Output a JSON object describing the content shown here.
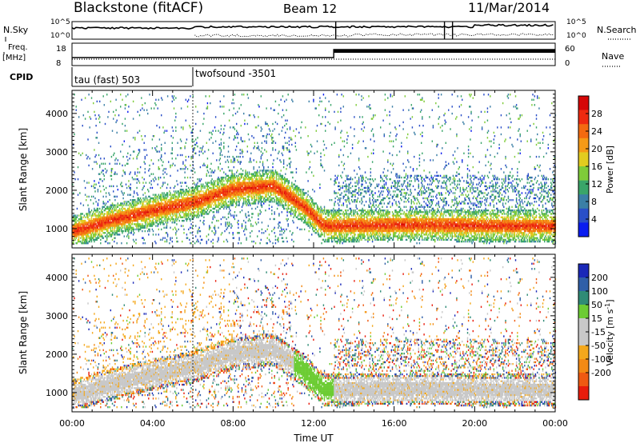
{
  "header": {
    "station": "Blackstone (fitACF)",
    "beam": "Beam 12",
    "date": "11/Mar/2014"
  },
  "status_panels": {
    "nsky_label": "N.Sky",
    "nsearch_label": "N.Search",
    "noise_ticks_left": [
      "10^5",
      "10^0"
    ],
    "noise_ticks_right": [
      "10^5",
      "10^0"
    ],
    "freq_label_1": "Freq.",
    "freq_label_2": "[MHz]",
    "freq_ticks": [
      "18",
      "8"
    ],
    "nave_label": "Nave",
    "nave_ticks": [
      "60",
      "0"
    ],
    "cpid_label": "CPID",
    "cpid_segments": [
      {
        "name": "tau (fast) 503",
        "start_hour": 0
      },
      {
        "name": "twofsound -3501",
        "start_hour": 6
      }
    ],
    "frequency_switch_hour": 13
  },
  "chart_data": [
    {
      "type": "heatmap",
      "panel": "power",
      "xlabel": "",
      "ylabel": "Slant Range [km]",
      "xlim": [
        0,
        24
      ],
      "ylim": [
        500,
        4600
      ],
      "yticks": [
        1000,
        2000,
        3000,
        4000
      ],
      "colorbar": {
        "label": "Power [dB]",
        "ticks": [
          4,
          8,
          12,
          16,
          20,
          24,
          28
        ],
        "range": [
          0,
          32
        ],
        "colors": [
          "#0a1cf0",
          "#2a4fc8",
          "#3b7fa6",
          "#3aa569",
          "#7fcc39",
          "#e2cc1f",
          "#f59a16",
          "#f36a10",
          "#ee2a10",
          "#d60707"
        ]
      },
      "echo_band_centre_km": [
        {
          "hour": 0,
          "range": 900
        },
        {
          "hour": 2,
          "range": 1200
        },
        {
          "hour": 4,
          "range": 1450
        },
        {
          "hour": 6,
          "range": 1650
        },
        {
          "hour": 8,
          "range": 2000
        },
        {
          "hour": 10,
          "range": 2100
        },
        {
          "hour": 11.5,
          "range": 1550
        },
        {
          "hour": 12.5,
          "range": 1050
        },
        {
          "hour": 16,
          "range": 1080
        },
        {
          "hour": 20,
          "range": 1060
        },
        {
          "hour": 24,
          "range": 1040
        }
      ]
    },
    {
      "type": "heatmap",
      "panel": "velocity",
      "xlabel": "Time UT",
      "ylabel": "Slant Range [km]",
      "xlim": [
        0,
        24
      ],
      "ylim": [
        500,
        4600
      ],
      "xticks": [
        "00:00",
        "04:00",
        "08:00",
        "12:00",
        "16:00",
        "20:00",
        "00:00"
      ],
      "yticks": [
        1000,
        2000,
        3000,
        4000
      ],
      "colorbar": {
        "label": "Velocity [m s^-1]",
        "ticks": [
          200,
          100,
          50,
          15,
          -15,
          -50,
          -100,
          -200
        ],
        "colors": [
          "#1a28b8",
          "#2f5fa8",
          "#2f8b76",
          "#6ccc33",
          "#c8c8c8",
          "#c8c8c8",
          "#f4a81c",
          "#f38a14",
          "#ef5a12",
          "#e81c0c"
        ]
      }
    }
  ]
}
